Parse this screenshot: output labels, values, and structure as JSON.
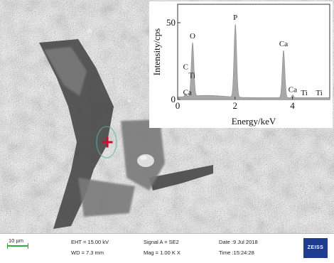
{
  "spectrum": {
    "ylabel": "Intensity/cps",
    "xlabel": "Energy/keV",
    "x_ticks": [
      "0",
      "2",
      "4"
    ],
    "y_ticks": [
      "0",
      "50"
    ],
    "xlim": [
      0,
      5.3
    ],
    "ylim": [
      0,
      62
    ],
    "peaks": [
      {
        "label": "C",
        "x": 0.28,
        "y": 4
      },
      {
        "label": "O",
        "x": 0.52,
        "y": 37
      },
      {
        "label": "Ti",
        "x": 0.45,
        "y": 3
      },
      {
        "label": "Ca",
        "x": 0.34,
        "y": 2
      },
      {
        "label": "P",
        "x": 2.01,
        "y": 49
      },
      {
        "label": "Ca",
        "x": 3.69,
        "y": 32
      },
      {
        "label": "Ca",
        "x": 4.01,
        "y": 3
      },
      {
        "label": "Ti",
        "x": 4.51,
        "y": 1
      },
      {
        "label": "Ti",
        "x": 4.93,
        "y": 1
      }
    ]
  },
  "infobar": {
    "scale": "10 µm",
    "eht": "EHT = 15.00 kV",
    "wd": "WD = 7.3 mm",
    "signal": "Signal A = SE2",
    "mag": "Mag = 1.00 K X",
    "date": "Date :9 Jul 2018",
    "time": "Time :15:24:28",
    "logo": "ZEISS"
  },
  "colors": {
    "spectrum_fill": "#a8a8a8",
    "spectrum_stroke": "#8c8c8c",
    "marker": "#c8102e",
    "scalebar": "#2fae3a",
    "logo_bg": "#1f3b8f"
  }
}
